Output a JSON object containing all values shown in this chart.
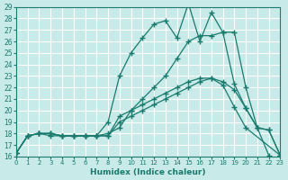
{
  "xlabel": "Humidex (Indice chaleur)",
  "bg_color": "#c8eae8",
  "grid_color": "#ffffff",
  "line_color": "#1a7a6e",
  "xlim": [
    0,
    23
  ],
  "ylim": [
    16,
    29
  ],
  "xticks": [
    0,
    1,
    2,
    3,
    4,
    5,
    6,
    7,
    8,
    9,
    10,
    11,
    12,
    13,
    14,
    15,
    16,
    17,
    18,
    19,
    20,
    21,
    22,
    23
  ],
  "yticks": [
    16,
    17,
    18,
    19,
    20,
    21,
    22,
    23,
    24,
    25,
    26,
    27,
    28,
    29
  ],
  "series": [
    {
      "x": [
        0,
        1,
        2,
        3,
        4,
        5,
        6,
        7,
        8,
        9,
        10,
        11,
        12,
        13,
        14,
        15,
        16,
        17,
        18,
        19,
        20,
        23
      ],
      "y": [
        16.3,
        17.8,
        18.0,
        18.0,
        17.8,
        17.8,
        17.8,
        17.8,
        17.8,
        19.5,
        20.0,
        20.5,
        21.0,
        21.5,
        22.0,
        22.5,
        22.8,
        22.8,
        22.2,
        20.3,
        18.5,
        16.1
      ]
    },
    {
      "x": [
        0,
        1,
        2,
        3,
        4,
        5,
        6,
        7,
        8,
        9,
        10,
        11,
        12,
        13,
        14,
        15,
        16,
        17,
        18,
        19,
        20,
        21,
        22,
        23
      ],
      "y": [
        16.3,
        17.8,
        18.0,
        18.0,
        17.8,
        17.8,
        17.8,
        17.8,
        18.0,
        18.5,
        20.0,
        21.0,
        22.0,
        23.0,
        24.5,
        26.0,
        26.5,
        26.5,
        26.8,
        26.8,
        22.0,
        18.5,
        18.3,
        16.1
      ]
    },
    {
      "x": [
        0,
        1,
        2,
        3,
        4,
        5,
        6,
        7,
        8,
        9,
        10,
        11,
        12,
        13,
        14,
        15,
        16,
        17,
        18,
        19,
        20,
        21,
        22,
        23
      ],
      "y": [
        16.3,
        17.8,
        18.0,
        18.0,
        17.8,
        17.8,
        17.8,
        17.8,
        17.8,
        19.0,
        19.5,
        20.0,
        20.5,
        21.0,
        21.5,
        22.0,
        22.5,
        22.8,
        22.5,
        21.8,
        20.2,
        18.5,
        18.3,
        16.1
      ]
    },
    {
      "x": [
        0,
        1,
        2,
        3,
        4,
        5,
        6,
        7,
        8,
        9,
        10,
        11,
        12,
        13,
        14,
        15,
        16,
        17,
        18,
        19,
        20,
        21,
        22
      ],
      "y": [
        16.3,
        17.8,
        18.0,
        17.8,
        17.8,
        17.8,
        17.8,
        17.8,
        19.0,
        23.0,
        25.0,
        26.3,
        27.5,
        27.8,
        26.3,
        29.3,
        26.0,
        28.5,
        26.8,
        22.3,
        20.2,
        18.5,
        16.1
      ]
    }
  ]
}
